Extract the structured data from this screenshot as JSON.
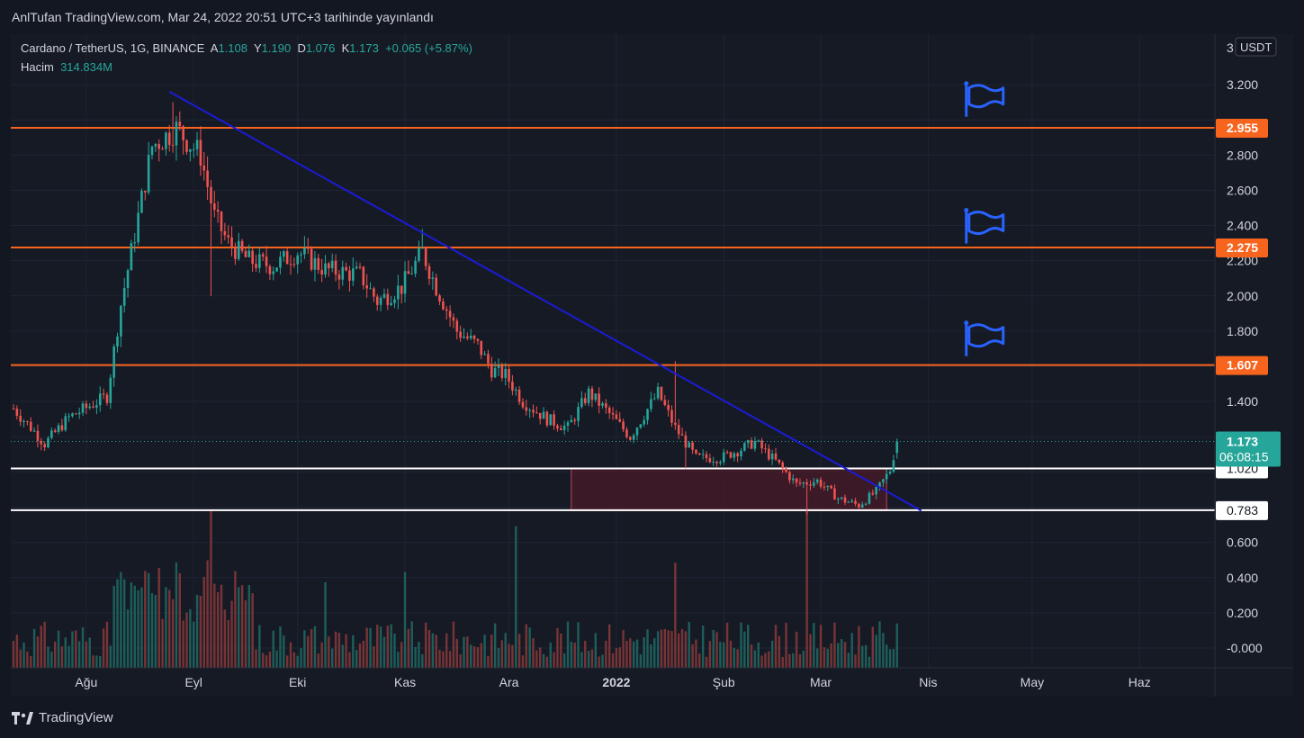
{
  "header": {
    "publish_line": "AnlTufan TradingView.com, Mar 24, 2022 20:51 UTC+3 tarihinde yayınlandı"
  },
  "legend": {
    "symbol": "Cardano / TetherUS, 1G, BINANCE",
    "a_label": "A",
    "a_value": "1.108",
    "y_label": "Y",
    "y_value": "1.190",
    "d_label": "D",
    "d_value": "1.076",
    "k_label": "K",
    "k_value": "1.173",
    "change": "+0.065 (+5.87%)",
    "volume_label": "Hacim",
    "volume_value": "314.834M"
  },
  "footer": {
    "brand": "TradingView"
  },
  "colors": {
    "background": "#161a25",
    "up": "#26a69a",
    "down": "#ef5350",
    "resistance": "#f7641d",
    "support": "#ffffff",
    "trendline": "#1b1bd6",
    "zone": "#4a1a28",
    "flag": "#2962ff"
  },
  "chart_data": {
    "type": "candlestick",
    "symbol": "Cardano / TetherUS",
    "timeframe": "1G",
    "exchange": "BINANCE",
    "currency_label": "USDT",
    "ylim": [
      -0.1,
      3.3
    ],
    "y_ticks": [
      "3.200",
      "2.800",
      "2.600",
      "2.400",
      "2.200",
      "2.000",
      "1.800",
      "1.400",
      "0.600",
      "0.400",
      "0.200",
      "-0.000"
    ],
    "y_top_partial": "3",
    "x_ticks": [
      {
        "label": "Ağu",
        "bold": false,
        "day": 21
      },
      {
        "label": "Eyl",
        "bold": false,
        "day": 52
      },
      {
        "label": "Eki",
        "bold": false,
        "day": 82
      },
      {
        "label": "Kas",
        "bold": false,
        "day": 113
      },
      {
        "label": "Ara",
        "bold": false,
        "day": 143
      },
      {
        "label": "2022",
        "bold": true,
        "day": 174
      },
      {
        "label": "Şub",
        "bold": false,
        "day": 205
      },
      {
        "label": "Mar",
        "bold": false,
        "day": 233
      },
      {
        "label": "Nis",
        "bold": false,
        "day": 264
      },
      {
        "label": "May",
        "bold": false,
        "day": 294
      },
      {
        "label": "Haz",
        "bold": false,
        "day": 325
      }
    ],
    "days": 262,
    "anchors": [
      [
        0,
        1.36
      ],
      [
        6,
        1.23
      ],
      [
        9,
        1.16
      ],
      [
        16,
        1.31
      ],
      [
        27,
        1.43
      ],
      [
        31,
        1.95
      ],
      [
        35,
        2.35
      ],
      [
        40,
        2.85
      ],
      [
        47,
        2.95
      ],
      [
        54,
        2.8
      ],
      [
        58,
        2.45
      ],
      [
        62,
        2.3
      ],
      [
        68,
        2.2
      ],
      [
        75,
        2.17
      ],
      [
        82,
        2.25
      ],
      [
        90,
        2.15
      ],
      [
        100,
        2.12
      ],
      [
        105,
        1.97
      ],
      [
        112,
        2.05
      ],
      [
        118,
        2.25
      ],
      [
        122,
        2.05
      ],
      [
        128,
        1.8
      ],
      [
        134,
        1.72
      ],
      [
        138,
        1.58
      ],
      [
        142,
        1.55
      ],
      [
        147,
        1.4
      ],
      [
        154,
        1.3
      ],
      [
        160,
        1.25
      ],
      [
        166,
        1.45
      ],
      [
        172,
        1.33
      ],
      [
        178,
        1.2
      ],
      [
        186,
        1.45
      ],
      [
        191,
        1.25
      ],
      [
        197,
        1.08
      ],
      [
        204,
        1.08
      ],
      [
        209,
        1.12
      ],
      [
        214,
        1.17
      ],
      [
        220,
        1.06
      ],
      [
        226,
        0.93
      ],
      [
        232,
        0.95
      ],
      [
        238,
        0.85
      ],
      [
        244,
        0.81
      ],
      [
        249,
        0.89
      ],
      [
        253,
        1.01
      ],
      [
        255,
        1.173
      ]
    ],
    "spikes": [
      {
        "day": 46,
        "high": 3.1
      },
      {
        "day": 57,
        "low": 2.0
      },
      {
        "day": 118,
        "high": 2.38
      },
      {
        "day": 191,
        "high": 1.63
      },
      {
        "day": 194,
        "low": 1.02
      },
      {
        "day": 229,
        "low": 0.76
      }
    ],
    "volume_spike_days": [
      57,
      90,
      113,
      145,
      191,
      229
    ],
    "last_candle": {
      "open": 1.108,
      "high": 1.19,
      "low": 1.076,
      "close": 1.173
    },
    "horizontal_levels": [
      {
        "value": 2.955,
        "label": "2.955",
        "kind": "resistance"
      },
      {
        "value": 2.275,
        "label": "2.275",
        "kind": "resistance"
      },
      {
        "value": 1.607,
        "label": "1.607",
        "kind": "resistance"
      },
      {
        "value": 1.02,
        "label": "1.020",
        "kind": "support"
      },
      {
        "value": 0.783,
        "label": "0.783",
        "kind": "support"
      }
    ],
    "last_price_label": "1.173",
    "countdown_label": "06:08:15",
    "trendline": {
      "from": {
        "day": 45,
        "price": 3.16
      },
      "to": {
        "day": 262,
        "price": 0.78
      }
    },
    "zone": {
      "from_day": 161,
      "to_day": 252,
      "low": 0.78,
      "high": 1.02
    },
    "flag_prices": [
      3.12,
      2.4,
      1.76
    ],
    "flag_day": 275
  }
}
